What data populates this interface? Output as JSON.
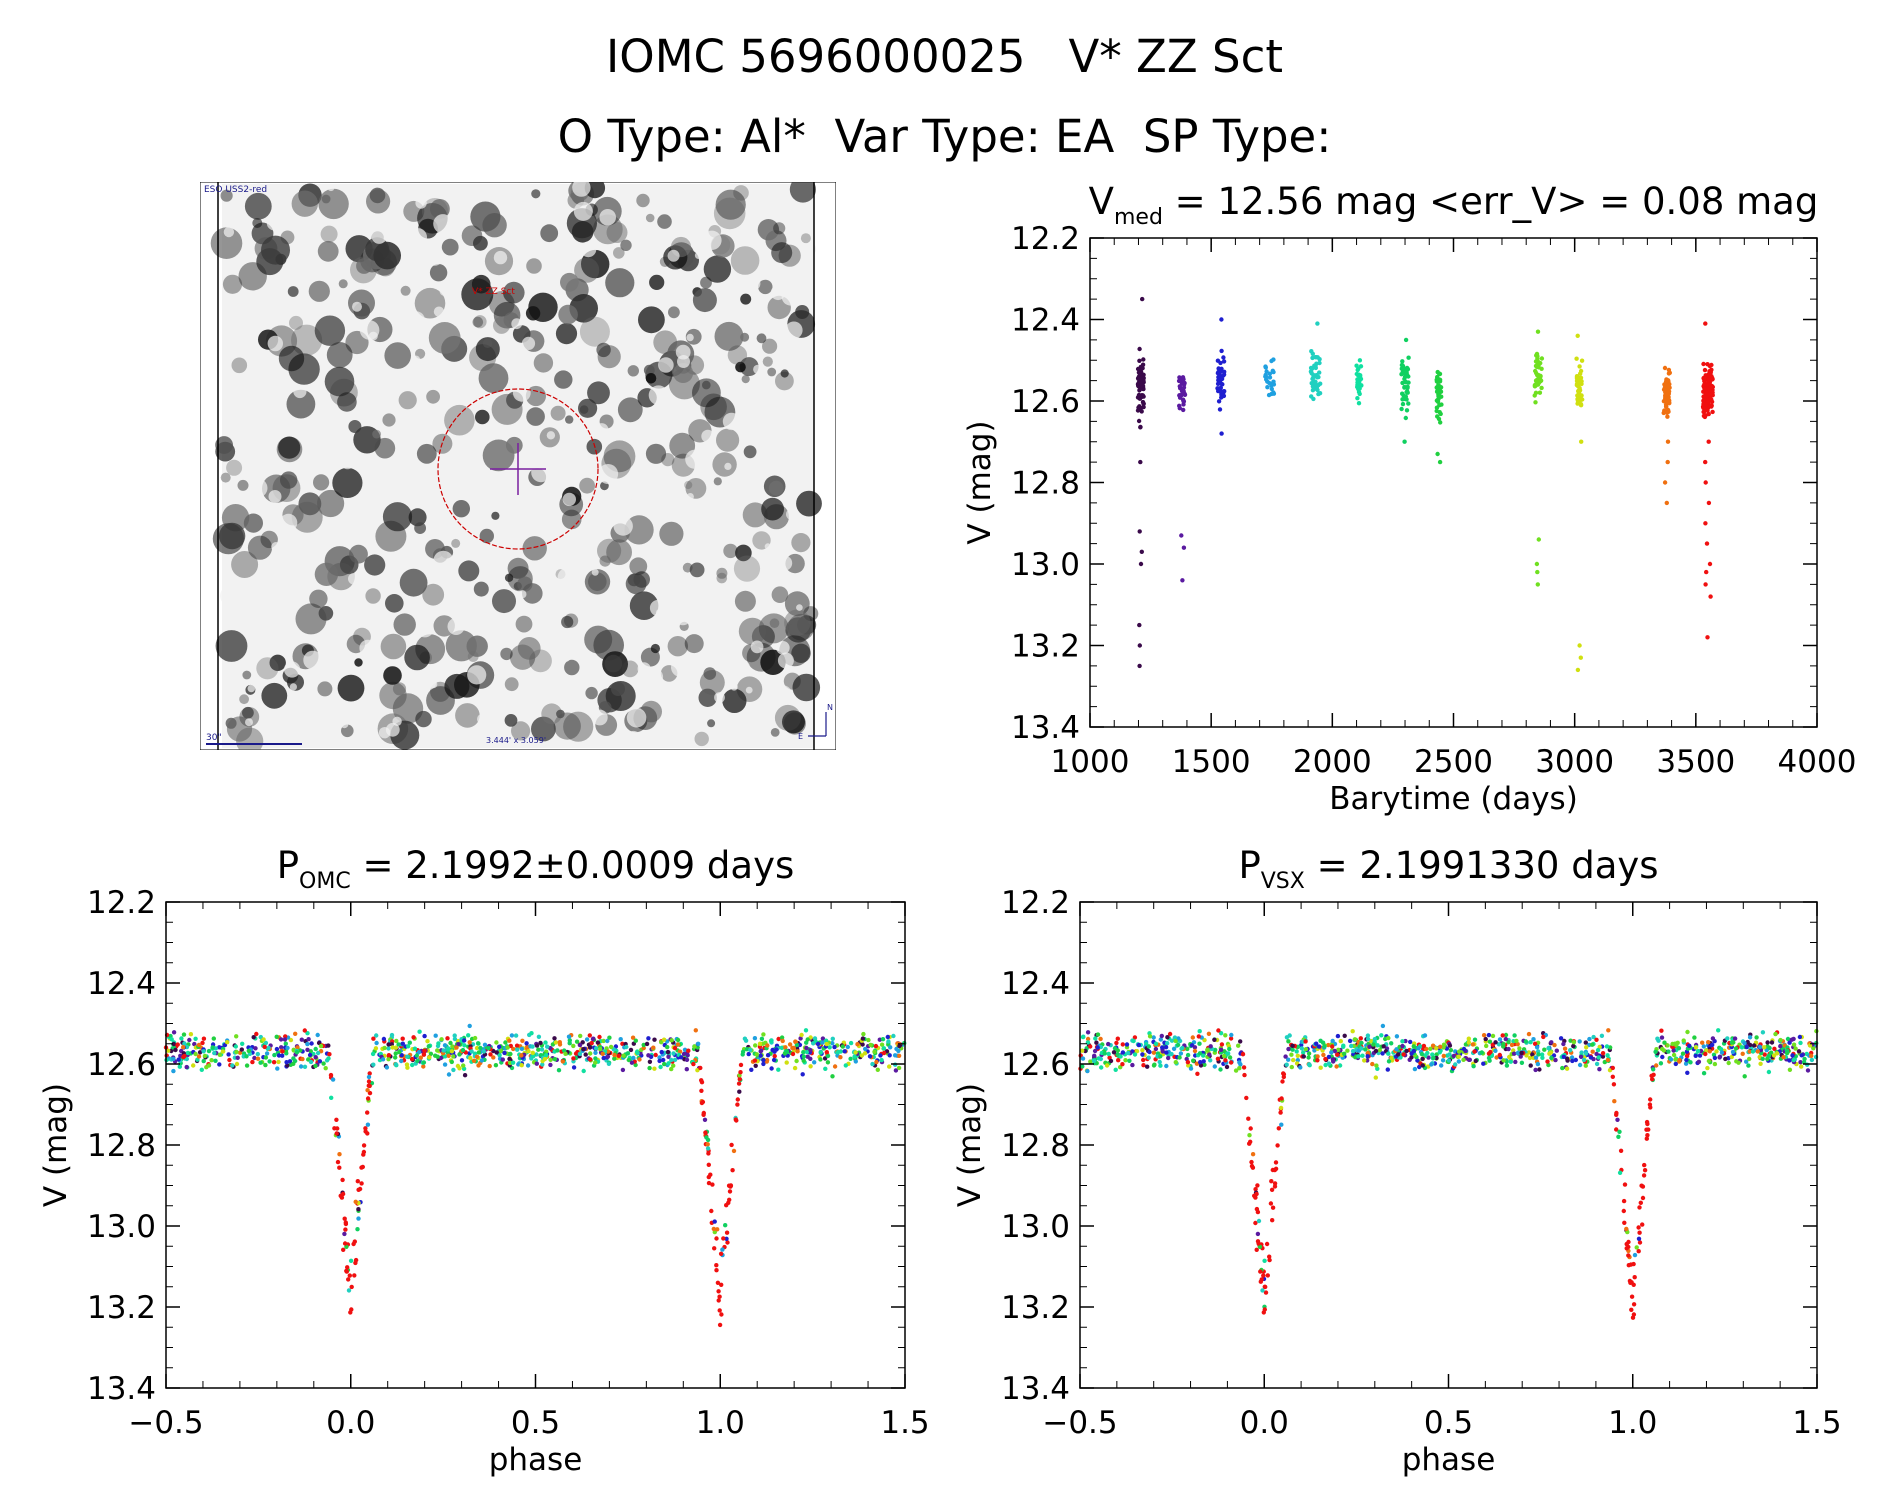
{
  "header": {
    "title_line1": "IOMC 5696000025   V* ZZ Sct",
    "title_line2": "O Type: Al*  Var Type: EA  SP Type:"
  },
  "finder": {
    "survey_label": "ESO USS2-red",
    "target_label": "V* ZZ Sct",
    "scale_label": "30\"",
    "fov_label": "3.444' x 3.059'",
    "compass_n": "N",
    "compass_e": "E",
    "background_color": "#f2f2f2",
    "marker_color": "#cc0000",
    "cross_color": "#7a1fa0"
  },
  "chart_data": [
    {
      "type": "scatter",
      "title_main": "V",
      "title_sub": "med",
      "title_rest": " = 12.56 mag <err_V> = 0.08 mag",
      "xlabel": "Barytime (days)",
      "ylabel": "V (mag)",
      "xlim": [
        1000,
        4000
      ],
      "ylim": [
        13.4,
        12.2
      ],
      "x_ticks": [
        "1000",
        "1500",
        "2000",
        "2500",
        "3000",
        "3500",
        "4000"
      ],
      "y_ticks": [
        "12.2",
        "12.4",
        "12.6",
        "12.8",
        "13.0",
        "13.2",
        "13.4"
      ],
      "y_reversed": true,
      "color_by": "time (rainbow: purple to red)",
      "clusters": [
        {
          "x": 1210,
          "width": 25,
          "center": 12.56,
          "spread": 0.09,
          "n": 70,
          "color": "#3a0a4a",
          "outliers": [
            12.35,
            12.75,
            12.92,
            12.97,
            13.0,
            13.15,
            13.2,
            13.25
          ]
        },
        {
          "x": 1380,
          "width": 25,
          "center": 12.58,
          "spread": 0.05,
          "n": 30,
          "color": "#5a1aa0",
          "outliers": [
            12.93,
            12.96,
            13.04
          ]
        },
        {
          "x": 1540,
          "width": 30,
          "center": 12.55,
          "spread": 0.07,
          "n": 45,
          "color": "#1f1fd0",
          "outliers": [
            12.4,
            12.68
          ]
        },
        {
          "x": 1740,
          "width": 40,
          "center": 12.55,
          "spread": 0.05,
          "n": 25,
          "color": "#1fa0e0",
          "outliers": []
        },
        {
          "x": 1930,
          "width": 40,
          "center": 12.53,
          "spread": 0.07,
          "n": 40,
          "color": "#20d0c0",
          "outliers": [
            12.41
          ]
        },
        {
          "x": 2110,
          "width": 20,
          "center": 12.55,
          "spread": 0.06,
          "n": 30,
          "color": "#10e0a0",
          "outliers": []
        },
        {
          "x": 2300,
          "width": 30,
          "center": 12.56,
          "spread": 0.06,
          "n": 45,
          "color": "#10d060",
          "outliers": [
            12.45,
            12.7
          ]
        },
        {
          "x": 2440,
          "width": 20,
          "center": 12.58,
          "spread": 0.07,
          "n": 45,
          "color": "#20d040",
          "outliers": [
            12.73,
            12.75
          ]
        },
        {
          "x": 2850,
          "width": 30,
          "center": 12.54,
          "spread": 0.06,
          "n": 40,
          "color": "#70e020",
          "outliers": [
            12.43,
            12.94,
            13.0,
            13.02,
            13.05
          ]
        },
        {
          "x": 3020,
          "width": 25,
          "center": 12.56,
          "spread": 0.07,
          "n": 40,
          "color": "#d0e010",
          "outliers": [
            12.44,
            12.7,
            13.2,
            13.23,
            13.26
          ]
        },
        {
          "x": 3380,
          "width": 25,
          "center": 12.58,
          "spread": 0.06,
          "n": 50,
          "color": "#f07010",
          "outliers": [
            12.7,
            12.75,
            12.8,
            12.85
          ]
        },
        {
          "x": 3550,
          "width": 40,
          "center": 12.58,
          "spread": 0.06,
          "n": 130,
          "color": "#f01010",
          "outliers": [
            12.41,
            12.7,
            12.75,
            12.8,
            12.85,
            12.9,
            12.95,
            13.0,
            13.02,
            13.05,
            13.08,
            13.18
          ]
        }
      ]
    },
    {
      "type": "scatter",
      "title_main": "P",
      "title_sub": "OMC",
      "title_rest": " = 2.1992±0.0009 days",
      "xlabel": "phase",
      "ylabel": "V (mag)",
      "xlim": [
        -0.5,
        1.5
      ],
      "ylim": [
        13.4,
        12.2
      ],
      "x_ticks": [
        "−0.5",
        "0.0",
        "0.5",
        "1.0",
        "1.5"
      ],
      "y_ticks": [
        "12.2",
        "12.4",
        "12.6",
        "12.8",
        "13.0",
        "13.2",
        "13.4"
      ],
      "y_reversed": true,
      "baseline_mag": 12.57,
      "scatter_mag": 0.05,
      "eclipse": {
        "phase": 0.0,
        "depth_mag": 13.25,
        "half_width_phase": 0.06
      },
      "repeat_period_phase": 1.0,
      "n_points": 1200
    },
    {
      "type": "scatter",
      "title_main": "P",
      "title_sub": "VSX",
      "title_rest": " = 2.1991330 days",
      "xlabel": "phase",
      "ylabel": "V (mag)",
      "xlim": [
        -0.5,
        1.5
      ],
      "ylim": [
        13.4,
        12.2
      ],
      "x_ticks": [
        "−0.5",
        "0.0",
        "0.5",
        "1.0",
        "1.5"
      ],
      "y_ticks": [
        "12.2",
        "12.4",
        "12.6",
        "12.8",
        "13.0",
        "13.2",
        "13.4"
      ],
      "y_reversed": true,
      "baseline_mag": 12.57,
      "scatter_mag": 0.05,
      "eclipse": {
        "phase": 0.0,
        "depth_mag": 13.25,
        "half_width_phase": 0.06
      },
      "repeat_period_phase": 1.0,
      "n_points": 1200
    }
  ]
}
